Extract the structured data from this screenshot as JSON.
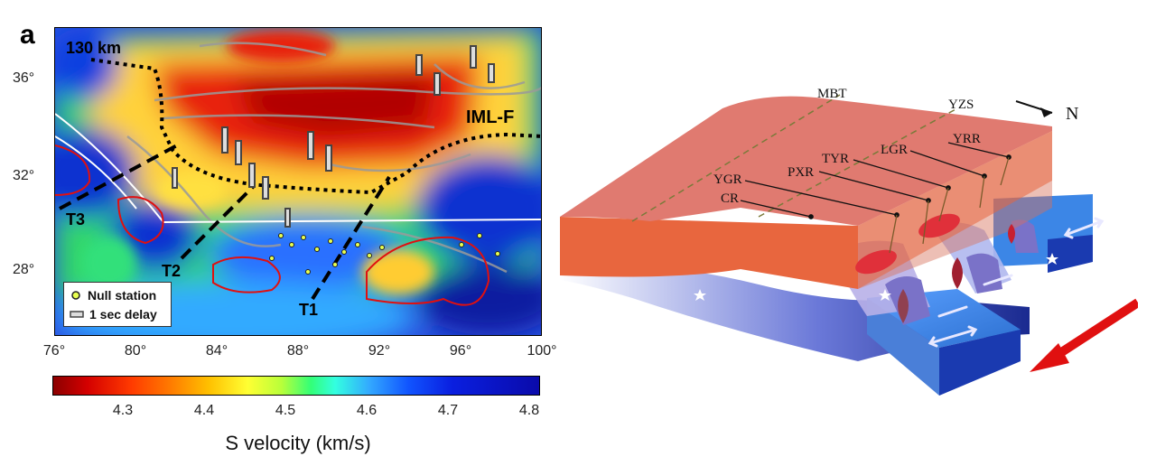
{
  "panel_label": "a",
  "map": {
    "depth_label": "130 km",
    "fault_label": "IML-F",
    "profiles": [
      "T1",
      "T2",
      "T3"
    ],
    "lat_ticks": [
      "36°",
      "32°",
      "28°"
    ],
    "lon_ticks": [
      "76°",
      "80°",
      "84°",
      "88°",
      "92°",
      "96°",
      "100°"
    ],
    "legend": {
      "null_station": "Null station",
      "delay": "1 sec delay"
    }
  },
  "colorbar": {
    "title": "S velocity (km/s)",
    "ticks": [
      "4.3",
      "4.4",
      "4.5",
      "4.6",
      "4.7",
      "4.8"
    ],
    "colors": {
      "slow": "#b00000",
      "mid": "#33ff77",
      "fast": "#0a0aaa"
    }
  },
  "diagram": {
    "labels": {
      "mbt": "MBT",
      "yzs": "YZS",
      "north": "N",
      "yrr": "YRR",
      "lgr": "LGR",
      "tyr": "TYR",
      "pxr": "PXR",
      "ygr": "YGR",
      "cr": "CR"
    },
    "colors": {
      "plate_top": "#e07a70",
      "plate_side": "#e8663e",
      "slab": "#3a7fe0",
      "arrow": "#e01010"
    }
  }
}
